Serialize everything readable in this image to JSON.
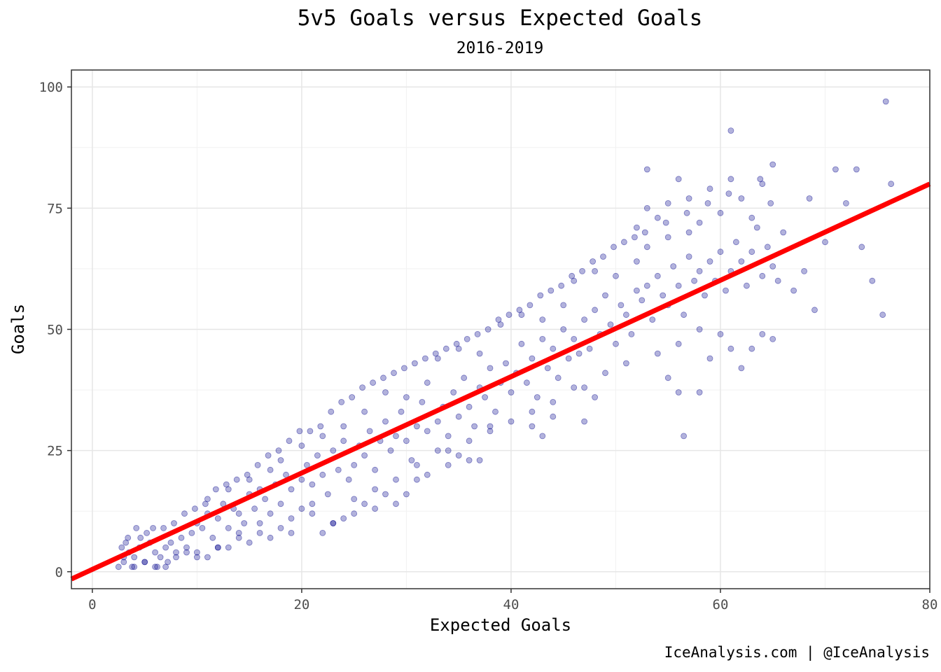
{
  "chart_data": {
    "type": "scatter",
    "title": "5v5 Goals versus Expected Goals",
    "subtitle": "2016-2019",
    "xlabel": "Expected Goals",
    "ylabel": "Goals",
    "caption": "IceAnalysis.com | @IceAnalysis",
    "xlim": [
      -2,
      80
    ],
    "ylim": [
      -3.5,
      103.5
    ],
    "x_ticks": [
      0,
      20,
      40,
      60,
      80
    ],
    "y_ticks": [
      0,
      25,
      50,
      75,
      100
    ],
    "grid": true,
    "point_color": "#00008B",
    "fit_line": {
      "color": "#FF0000",
      "points": [
        [
          -2,
          -1.5
        ],
        [
          80,
          80
        ]
      ]
    },
    "points": [
      [
        2.5,
        1
      ],
      [
        3,
        2
      ],
      [
        3.5,
        4
      ],
      [
        4,
        3
      ],
      [
        4.5,
        5
      ],
      [
        5,
        2
      ],
      [
        5.5,
        6
      ],
      [
        6,
        4
      ],
      [
        6.5,
        3
      ],
      [
        7,
        5
      ],
      [
        7.5,
        6
      ],
      [
        8,
        4
      ],
      [
        3.2,
        6
      ],
      [
        3.8,
        1
      ],
      [
        4.2,
        9
      ],
      [
        5.2,
        8
      ],
      [
        6.2,
        1
      ],
      [
        7.2,
        2
      ],
      [
        8.5,
        7
      ],
      [
        9,
        5
      ],
      [
        9.5,
        8
      ],
      [
        10,
        10
      ],
      [
        10.5,
        9
      ],
      [
        11,
        12
      ],
      [
        11.5,
        7
      ],
      [
        12,
        11
      ],
      [
        12.5,
        14
      ],
      [
        13,
        9
      ],
      [
        13.5,
        13
      ],
      [
        14,
        12
      ],
      [
        14.5,
        10
      ],
      [
        15,
        16
      ],
      [
        15.5,
        13
      ],
      [
        16,
        17
      ],
      [
        16.5,
        15
      ],
      [
        17,
        12
      ],
      [
        17.5,
        18
      ],
      [
        18,
        14
      ],
      [
        18.5,
        20
      ],
      [
        19,
        17
      ],
      [
        10,
        4
      ],
      [
        11,
        15
      ],
      [
        12,
        5
      ],
      [
        13,
        17
      ],
      [
        14,
        8
      ],
      [
        15,
        19
      ],
      [
        16,
        10
      ],
      [
        17,
        21
      ],
      [
        18,
        23
      ],
      [
        19,
        11
      ],
      [
        20,
        19
      ],
      [
        20.5,
        22
      ],
      [
        21,
        18
      ],
      [
        21.5,
        24
      ],
      [
        22,
        20
      ],
      [
        22.5,
        16
      ],
      [
        23,
        25
      ],
      [
        23.5,
        21
      ],
      [
        24,
        27
      ],
      [
        24.5,
        19
      ],
      [
        20,
        26
      ],
      [
        21,
        14
      ],
      [
        22,
        28
      ],
      [
        23,
        10
      ],
      [
        24,
        30
      ],
      [
        25,
        22
      ],
      [
        25.5,
        26
      ],
      [
        26,
        24
      ],
      [
        26.5,
        29
      ],
      [
        27,
        21
      ],
      [
        27.5,
        27
      ],
      [
        28,
        31
      ],
      [
        28.5,
        25
      ],
      [
        29,
        28
      ],
      [
        29.5,
        33
      ],
      [
        30,
        27
      ],
      [
        30.5,
        23
      ],
      [
        31,
        30
      ],
      [
        31.5,
        35
      ],
      [
        32,
        29
      ],
      [
        25,
        15
      ],
      [
        26,
        33
      ],
      [
        27,
        17
      ],
      [
        28,
        37
      ],
      [
        29,
        19
      ],
      [
        30,
        36
      ],
      [
        31,
        22
      ],
      [
        32,
        39
      ],
      [
        33,
        31
      ],
      [
        33.5,
        34
      ],
      [
        34,
        28
      ],
      [
        34.5,
        37
      ],
      [
        35,
        32
      ],
      [
        35.5,
        40
      ],
      [
        36,
        34
      ],
      [
        36.5,
        30
      ],
      [
        37,
        38
      ],
      [
        37.5,
        36
      ],
      [
        38,
        42
      ],
      [
        38.5,
        33
      ],
      [
        33,
        44
      ],
      [
        34,
        25
      ],
      [
        35,
        46
      ],
      [
        36,
        27
      ],
      [
        37,
        45
      ],
      [
        38,
        29
      ],
      [
        39,
        39
      ],
      [
        39.5,
        43
      ],
      [
        40,
        37
      ],
      [
        40.5,
        41
      ],
      [
        41,
        47
      ],
      [
        41.5,
        39
      ],
      [
        42,
        44
      ],
      [
        42.5,
        36
      ],
      [
        43,
        48
      ],
      [
        43.5,
        42
      ],
      [
        44,
        46
      ],
      [
        44.5,
        40
      ],
      [
        45,
        50
      ],
      [
        45.5,
        44
      ],
      [
        39,
        51
      ],
      [
        40,
        31
      ],
      [
        41,
        53
      ],
      [
        42,
        33
      ],
      [
        43,
        52
      ],
      [
        44,
        35
      ],
      [
        45,
        55
      ],
      [
        46,
        48
      ],
      [
        46.5,
        45
      ],
      [
        47,
        52
      ],
      [
        47.5,
        46
      ],
      [
        48,
        54
      ],
      [
        48.5,
        49
      ],
      [
        49,
        57
      ],
      [
        49.5,
        51
      ],
      [
        50,
        47
      ],
      [
        50.5,
        55
      ],
      [
        51,
        53
      ],
      [
        51.5,
        49
      ],
      [
        52,
        58
      ],
      [
        46,
        60
      ],
      [
        47,
        38
      ],
      [
        48,
        62
      ],
      [
        49,
        41
      ],
      [
        50,
        61
      ],
      [
        51,
        43
      ],
      [
        52,
        64
      ],
      [
        52.5,
        56
      ],
      [
        53,
        59
      ],
      [
        53.5,
        52
      ],
      [
        54,
        61
      ],
      [
        54.5,
        57
      ],
      [
        55,
        55
      ],
      [
        55.5,
        63
      ],
      [
        56,
        59
      ],
      [
        56.5,
        53
      ],
      [
        57,
        65
      ],
      [
        57.5,
        60
      ],
      [
        58,
        62
      ],
      [
        58.5,
        57
      ],
      [
        53,
        67
      ],
      [
        54,
        45
      ],
      [
        55,
        69
      ],
      [
        56,
        47
      ],
      [
        57,
        70
      ],
      [
        58,
        50
      ],
      [
        59,
        64
      ],
      [
        59.5,
        60
      ],
      [
        60,
        66
      ],
      [
        60.5,
        58
      ],
      [
        61,
        62
      ],
      [
        61.5,
        68
      ],
      [
        62,
        64
      ],
      [
        62.5,
        59
      ],
      [
        63,
        66
      ],
      [
        63.5,
        71
      ],
      [
        64,
        61
      ],
      [
        64.5,
        67
      ],
      [
        65,
        63
      ],
      [
        65.5,
        60
      ],
      [
        52,
        71
      ],
      [
        53,
        75
      ],
      [
        54,
        73
      ],
      [
        55,
        76
      ],
      [
        56,
        81
      ],
      [
        57,
        77
      ],
      [
        58,
        72
      ],
      [
        59,
        79
      ],
      [
        60,
        74
      ],
      [
        61,
        81
      ],
      [
        62,
        77
      ],
      [
        63,
        73
      ],
      [
        64,
        80
      ],
      [
        65,
        84
      ],
      [
        66,
        70
      ],
      [
        67,
        58
      ],
      [
        68,
        62
      ],
      [
        69,
        54
      ],
      [
        70,
        68
      ],
      [
        71,
        83
      ],
      [
        53,
        83
      ],
      [
        61,
        91
      ],
      [
        72,
        76
      ],
      [
        73,
        83
      ],
      [
        73.5,
        67
      ],
      [
        74.5,
        60
      ],
      [
        75.5,
        53
      ],
      [
        75.8,
        97
      ],
      [
        76.3,
        80
      ],
      [
        68.5,
        77
      ],
      [
        55,
        40
      ],
      [
        56,
        37
      ],
      [
        56.5,
        28
      ],
      [
        58,
        37
      ],
      [
        59,
        44
      ],
      [
        60,
        49
      ],
      [
        61,
        46
      ],
      [
        62,
        42
      ],
      [
        63,
        46
      ],
      [
        64,
        49
      ],
      [
        65,
        48
      ],
      [
        47,
        31
      ],
      [
        46,
        38
      ],
      [
        48,
        36
      ],
      [
        44,
        32
      ],
      [
        43,
        28
      ],
      [
        42,
        30
      ],
      [
        38,
        30
      ],
      [
        37,
        23
      ],
      [
        36,
        23
      ],
      [
        35,
        24
      ],
      [
        34,
        22
      ],
      [
        33,
        25
      ],
      [
        32,
        20
      ],
      [
        31,
        19
      ],
      [
        30,
        16
      ],
      [
        29,
        14
      ],
      [
        28,
        16
      ],
      [
        27,
        13
      ],
      [
        26,
        14
      ],
      [
        25,
        12
      ],
      [
        24,
        11
      ],
      [
        23,
        10
      ],
      [
        22,
        8
      ],
      [
        21,
        12
      ],
      [
        20,
        13
      ],
      [
        19,
        8
      ],
      [
        18,
        9
      ],
      [
        17,
        7
      ],
      [
        16,
        8
      ],
      [
        15,
        6
      ],
      [
        14,
        7
      ],
      [
        13,
        5
      ],
      [
        12,
        5
      ],
      [
        11,
        3
      ],
      [
        10,
        3
      ],
      [
        9,
        4
      ],
      [
        8,
        3
      ],
      [
        7,
        1
      ],
      [
        6,
        1
      ],
      [
        5,
        2
      ],
      [
        4,
        1
      ],
      [
        3,
        3
      ],
      [
        2.8,
        5
      ],
      [
        3.4,
        7
      ],
      [
        4.6,
        7
      ],
      [
        5.8,
        9
      ],
      [
        6.8,
        9
      ],
      [
        7.8,
        10
      ],
      [
        8.8,
        12
      ],
      [
        9.8,
        13
      ],
      [
        10.8,
        14
      ],
      [
        11.8,
        17
      ],
      [
        12.8,
        18
      ],
      [
        13.8,
        19
      ],
      [
        14.8,
        20
      ],
      [
        15.8,
        22
      ],
      [
        16.8,
        24
      ],
      [
        17.8,
        25
      ],
      [
        18.8,
        27
      ],
      [
        19.8,
        29
      ],
      [
        20.8,
        29
      ],
      [
        21.8,
        30
      ],
      [
        22.8,
        33
      ],
      [
        23.8,
        35
      ],
      [
        24.8,
        36
      ],
      [
        25.8,
        38
      ],
      [
        26.8,
        39
      ],
      [
        27.8,
        40
      ],
      [
        28.8,
        41
      ],
      [
        29.8,
        42
      ],
      [
        30.8,
        43
      ],
      [
        31.8,
        44
      ],
      [
        32.8,
        45
      ],
      [
        33.8,
        46
      ],
      [
        34.8,
        47
      ],
      [
        35.8,
        48
      ],
      [
        36.8,
        49
      ],
      [
        37.8,
        50
      ],
      [
        38.8,
        52
      ],
      [
        39.8,
        53
      ],
      [
        40.8,
        54
      ],
      [
        41.8,
        55
      ],
      [
        42.8,
        57
      ],
      [
        43.8,
        58
      ],
      [
        44.8,
        59
      ],
      [
        45.8,
        61
      ],
      [
        46.8,
        62
      ],
      [
        47.8,
        64
      ],
      [
        48.8,
        65
      ],
      [
        49.8,
        67
      ],
      [
        50.8,
        68
      ],
      [
        51.8,
        69
      ],
      [
        52.8,
        70
      ],
      [
        54.8,
        72
      ],
      [
        56.8,
        74
      ],
      [
        58.8,
        76
      ],
      [
        60.8,
        78
      ],
      [
        63.8,
        81
      ],
      [
        64.8,
        76
      ]
    ]
  }
}
